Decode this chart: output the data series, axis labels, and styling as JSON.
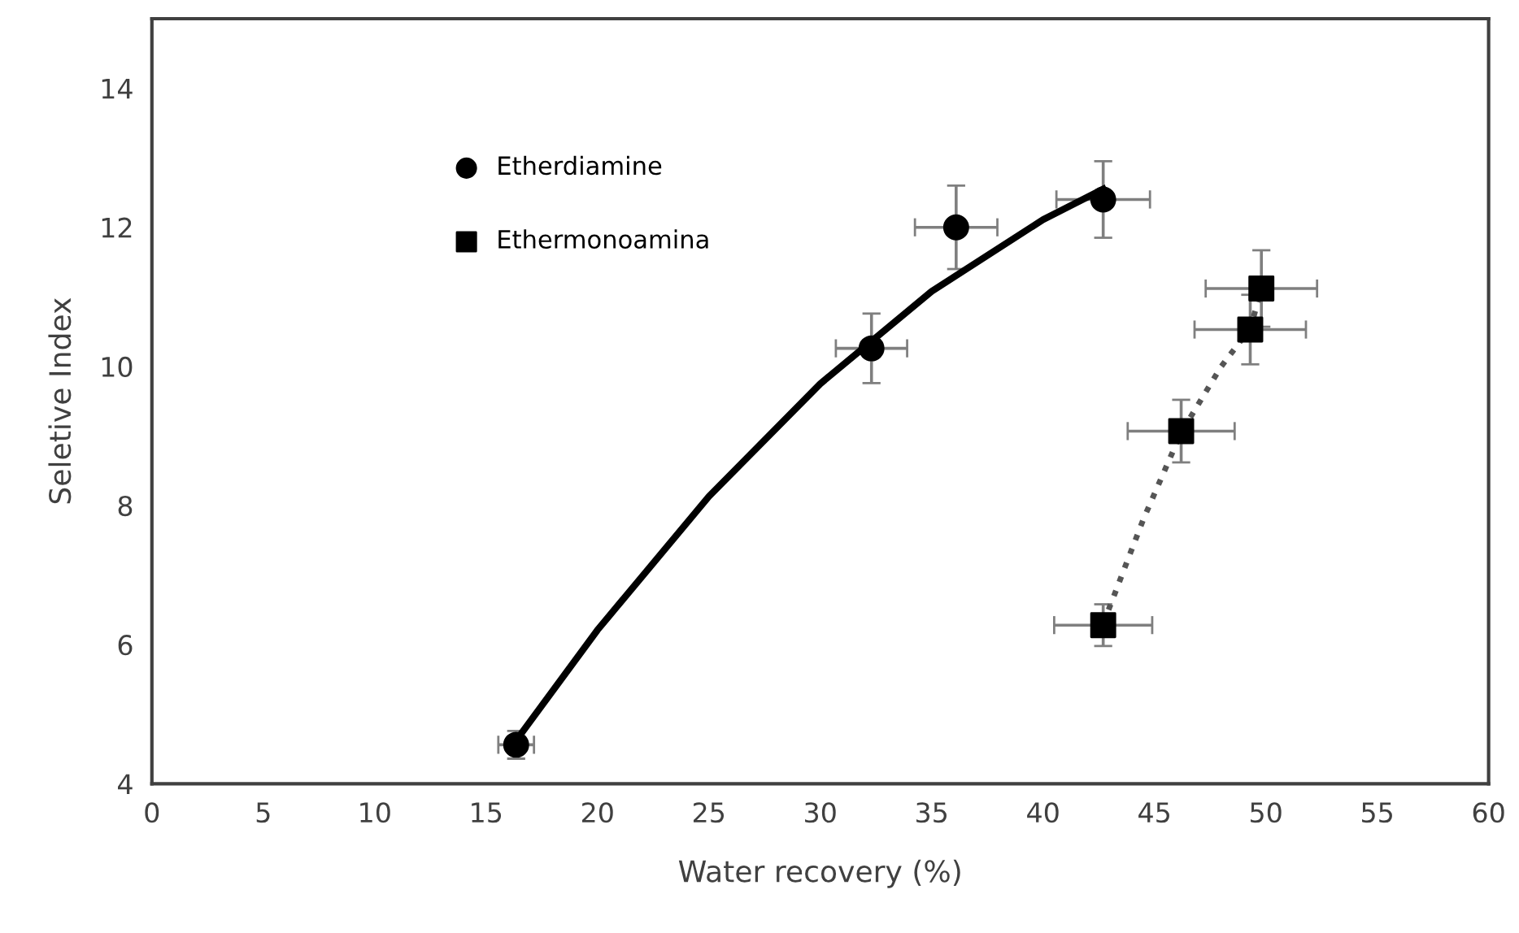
{
  "chart_data": {
    "type": "scatter",
    "xlabel": "Water recovery (%)",
    "ylabel": "Seletive Index",
    "xlim": [
      0,
      60
    ],
    "xticks": [
      0,
      5,
      10,
      15,
      20,
      25,
      30,
      35,
      40,
      45,
      50,
      55,
      60
    ],
    "ylim": [
      4,
      15
    ],
    "yticks": [
      4,
      6,
      8,
      10,
      12,
      14
    ],
    "grid": false,
    "legend": "top left",
    "series": [
      {
        "name": "Etherdiamine",
        "marker": "circle",
        "color": "#000000",
        "x": [
          16.35,
          32.3,
          36.1,
          42.7
        ],
        "values": [
          4.56,
          10.26,
          12.0,
          12.4
        ],
        "errors": [
          0.2,
          0.5,
          0.6,
          0.55
        ],
        "xerrors": [
          0.8,
          1.6,
          1.85,
          2.1
        ]
      },
      {
        "name": "Ethermonoamina",
        "marker": "square",
        "color": "#000000",
        "x": [
          42.7,
          46.2,
          49.3,
          49.8
        ],
        "values": [
          6.28,
          9.07,
          10.53,
          11.12
        ],
        "errors": [
          0.3,
          0.45,
          0.5,
          0.55
        ],
        "xerrors": [
          2.2,
          2.4,
          2.5,
          2.5
        ]
      },
      {
        "type": "line",
        "line_style": "solid",
        "marker": "none",
        "color": "#000000",
        "x": [
          16.3,
          20,
          25,
          30,
          35,
          40,
          42.7
        ],
        "values": [
          4.6,
          6.21,
          8.13,
          9.75,
          11.08,
          12.11,
          12.55
        ]
      },
      {
        "type": "line",
        "line_style": "dotted",
        "marker": "none",
        "color": "#555555",
        "x": [
          42.7,
          44.5,
          46.2,
          48,
          49.3,
          49.8
        ],
        "values": [
          6.3,
          7.8,
          9.05,
          10.0,
          10.55,
          11.1
        ]
      }
    ]
  }
}
